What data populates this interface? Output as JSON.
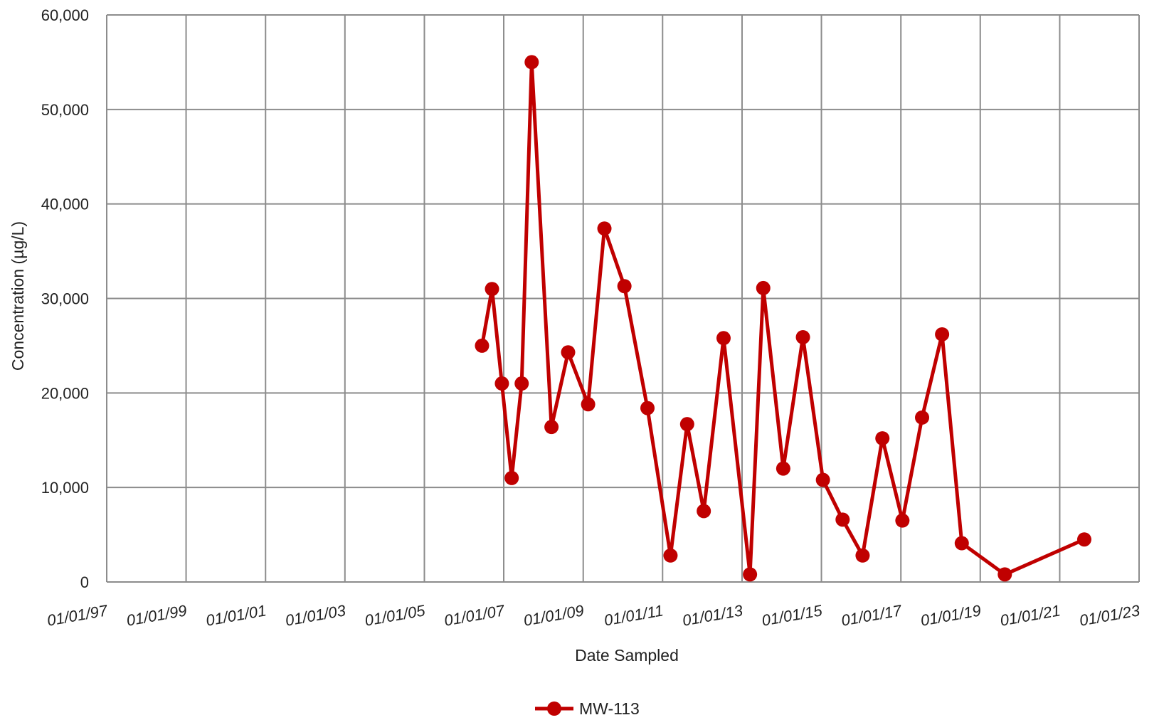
{
  "chart_data": {
    "type": "line",
    "xlabel": "Date Sampled",
    "ylabel": "Concentration (µg/L)",
    "ylim": [
      0,
      60000
    ],
    "y_ticks": [
      {
        "value": 0,
        "label": "0"
      },
      {
        "value": 10000,
        "label": "10,000"
      },
      {
        "value": 20000,
        "label": "20,000"
      },
      {
        "value": 30000,
        "label": "30,000"
      },
      {
        "value": 40000,
        "label": "40,000"
      },
      {
        "value": 50000,
        "label": "50,000"
      },
      {
        "value": 60000,
        "label": "60,000"
      }
    ],
    "xlim": [
      "1997-01-01",
      "2023-01-01"
    ],
    "x_ticks": [
      {
        "value": "1997-01-01",
        "label": "01/01/97"
      },
      {
        "value": "1999-01-01",
        "label": "01/01/99"
      },
      {
        "value": "2001-01-01",
        "label": "01/01/01"
      },
      {
        "value": "2003-01-01",
        "label": "01/01/03"
      },
      {
        "value": "2005-01-01",
        "label": "01/01/05"
      },
      {
        "value": "2007-01-01",
        "label": "01/01/07"
      },
      {
        "value": "2009-01-01",
        "label": "01/01/09"
      },
      {
        "value": "2011-01-01",
        "label": "01/01/11"
      },
      {
        "value": "2013-01-01",
        "label": "01/01/13"
      },
      {
        "value": "2015-01-01",
        "label": "01/01/15"
      },
      {
        "value": "2017-01-01",
        "label": "01/01/17"
      },
      {
        "value": "2019-01-01",
        "label": "01/01/19"
      },
      {
        "value": "2021-01-01",
        "label": "01/01/21"
      },
      {
        "value": "2023-01-01",
        "label": "01/01/23"
      }
    ],
    "grid": true,
    "legend_position": "bottom-center",
    "series": [
      {
        "name": "MW-113",
        "color": "#c00000",
        "points": [
          {
            "x": "2006-06-15",
            "y": 25000
          },
          {
            "x": "2006-09-15",
            "y": 31000
          },
          {
            "x": "2006-12-15",
            "y": 21000
          },
          {
            "x": "2007-03-15",
            "y": 11000
          },
          {
            "x": "2007-06-15",
            "y": 21000
          },
          {
            "x": "2007-09-15",
            "y": 55000
          },
          {
            "x": "2008-03-15",
            "y": 16400
          },
          {
            "x": "2008-08-15",
            "y": 24300
          },
          {
            "x": "2009-02-15",
            "y": 18800
          },
          {
            "x": "2009-07-15",
            "y": 37400
          },
          {
            "x": "2010-01-15",
            "y": 31300
          },
          {
            "x": "2010-08-15",
            "y": 18400
          },
          {
            "x": "2011-03-15",
            "y": 2800
          },
          {
            "x": "2011-08-15",
            "y": 16700
          },
          {
            "x": "2012-01-15",
            "y": 7500
          },
          {
            "x": "2012-07-15",
            "y": 25800
          },
          {
            "x": "2013-03-15",
            "y": 800
          },
          {
            "x": "2013-07-15",
            "y": 31100
          },
          {
            "x": "2014-01-15",
            "y": 12000
          },
          {
            "x": "2014-07-15",
            "y": 25900
          },
          {
            "x": "2015-01-15",
            "y": 10800
          },
          {
            "x": "2015-07-15",
            "y": 6600
          },
          {
            "x": "2016-01-15",
            "y": 2800
          },
          {
            "x": "2016-07-15",
            "y": 15200
          },
          {
            "x": "2017-01-15",
            "y": 6500
          },
          {
            "x": "2017-07-15",
            "y": 17400
          },
          {
            "x": "2018-01-15",
            "y": 26200
          },
          {
            "x": "2018-07-15",
            "y": 4100
          },
          {
            "x": "2019-08-15",
            "y": 800
          },
          {
            "x": "2021-08-15",
            "y": 4500
          }
        ]
      }
    ]
  }
}
